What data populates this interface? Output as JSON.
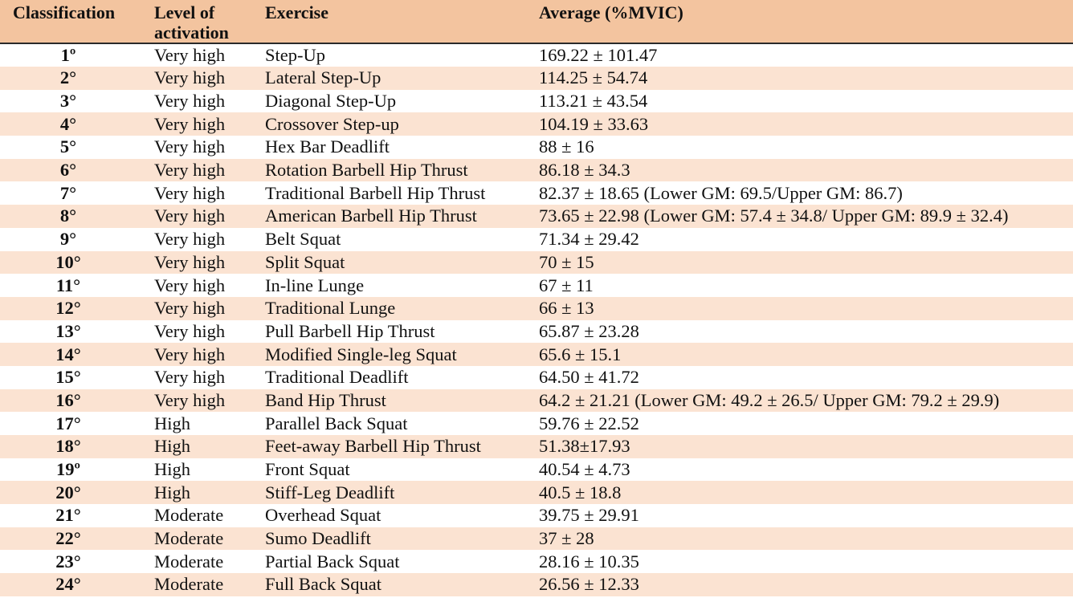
{
  "table": {
    "headers": {
      "classification": "Classification",
      "level": "Level of activation",
      "exercise": "Exercise",
      "average": "Average (%MVIC)"
    },
    "rows": [
      {
        "rank": "1º",
        "level": "Very high",
        "exercise": "Step-Up",
        "average": "169.22 ± 101.47"
      },
      {
        "rank": "2°",
        "level": "Very high",
        "exercise": "Lateral Step-Up",
        "average": "114.25 ± 54.74"
      },
      {
        "rank": "3°",
        "level": "Very high",
        "exercise": "Diagonal Step-Up",
        "average": "113.21 ± 43.54"
      },
      {
        "rank": "4°",
        "level": "Very high",
        "exercise": "Crossover Step-up",
        "average": "104.19 ± 33.63"
      },
      {
        "rank": "5°",
        "level": "Very high",
        "exercise": "Hex Bar Deadlift",
        "average": "88 ± 16"
      },
      {
        "rank": "6°",
        "level": "Very high",
        "exercise": "Rotation Barbell Hip Thrust",
        "average": "86.18 ± 34.3"
      },
      {
        "rank": "7°",
        "level": "Very high",
        "exercise": "Traditional Barbell Hip Thrust",
        "average": "82.37 ± 18.65 (Lower GM: 69.5/Upper GM: 86.7)"
      },
      {
        "rank": "8°",
        "level": "Very high",
        "exercise": "American Barbell Hip Thrust",
        "average": "73.65 ± 22.98 (Lower GM: 57.4 ± 34.8/ Upper GM: 89.9 ± 32.4)"
      },
      {
        "rank": "9°",
        "level": "Very high",
        "exercise": "Belt Squat",
        "average": "71.34 ± 29.42"
      },
      {
        "rank": "10°",
        "level": "Very high",
        "exercise": "Split Squat",
        "average": "70 ± 15"
      },
      {
        "rank": "11°",
        "level": "Very high",
        "exercise": "In-line Lunge",
        "average": "67 ± 11"
      },
      {
        "rank": "12°",
        "level": "Very high",
        "exercise": "Traditional Lunge",
        "average": "66 ± 13"
      },
      {
        "rank": "13°",
        "level": "Very high",
        "exercise": "Pull Barbell Hip Thrust",
        "average": "65.87 ± 23.28"
      },
      {
        "rank": "14°",
        "level": "Very high",
        "exercise": "Modified Single-leg Squat",
        "average": "65.6 ± 15.1"
      },
      {
        "rank": "15°",
        "level": "Very high",
        "exercise": "Traditional Deadlift",
        "average": "64.50 ± 41.72"
      },
      {
        "rank": "16°",
        "level": "Very high",
        "exercise": "Band Hip Thrust",
        "average": "64.2 ± 21.21 (Lower GM: 49.2 ± 26.5/ Upper GM: 79.2 ± 29.9)"
      },
      {
        "rank": "17°",
        "level": "High",
        "exercise": "Parallel Back Squat",
        "average": "59.76 ± 22.52"
      },
      {
        "rank": "18°",
        "level": "High",
        "exercise": "Feet-away Barbell Hip Thrust",
        "average": "51.38±17.93"
      },
      {
        "rank": "19º",
        "level": "High",
        "exercise": "Front Squat",
        "average": "40.54 ± 4.73"
      },
      {
        "rank": "20°",
        "level": "High",
        "exercise": "Stiff-Leg Deadlift",
        "average": "40.5 ± 18.8"
      },
      {
        "rank": "21°",
        "level": "Moderate",
        "exercise": "Overhead Squat",
        "average": "39.75 ± 29.91"
      },
      {
        "rank": "22°",
        "level": "Moderate",
        "exercise": "Sumo Deadlift",
        "average": "37 ± 28"
      },
      {
        "rank": "23°",
        "level": "Moderate",
        "exercise": "Partial Back Squat",
        "average": "28.16 ± 10.35"
      },
      {
        "rank": "24°",
        "level": "Moderate",
        "exercise": "Full Back Squat",
        "average": "26.56 ± 12.33"
      }
    ]
  },
  "colors": {
    "header_bg": "#f3c49f",
    "stripe_bg": "#fbe3d2",
    "row_bg": "#ffffff",
    "text": "#111111"
  }
}
